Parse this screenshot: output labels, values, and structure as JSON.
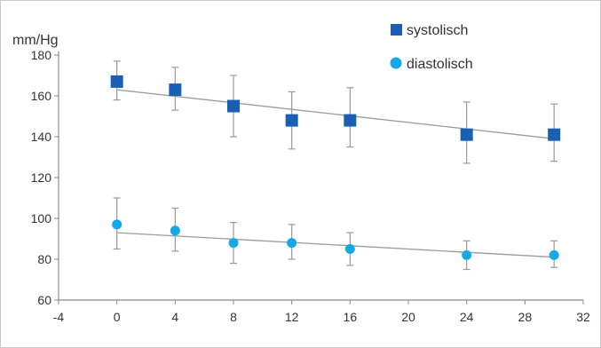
{
  "chart_data": {
    "type": "scatter",
    "title": "",
    "xlabel": "",
    "ylabel": "mm/Hg",
    "xlim": [
      -4,
      32
    ],
    "ylim": [
      60,
      180
    ],
    "x_ticks": [
      "-4",
      "0",
      "4",
      "8",
      "12",
      "16",
      "20",
      "24",
      "28",
      "32"
    ],
    "y_ticks": [
      "60",
      "80",
      "100",
      "120",
      "140",
      "160",
      "180"
    ],
    "grid": false,
    "legend_position": "top-right",
    "series": [
      {
        "name": "systolisch",
        "marker": "square",
        "color": "#1a5fb4",
        "x": [
          0,
          4,
          8,
          12,
          16,
          24,
          30
        ],
        "y": [
          167,
          163,
          155,
          148,
          148,
          141,
          141
        ],
        "error_low": [
          158,
          153,
          140,
          134,
          135,
          127,
          128
        ],
        "error_high": [
          177,
          174,
          170,
          162,
          164,
          157,
          156
        ],
        "trend": {
          "x": [
            0,
            30
          ],
          "y": [
            163,
            139
          ]
        }
      },
      {
        "name": "diastolisch",
        "marker": "circle",
        "color": "#14a8e6",
        "x": [
          0,
          4,
          8,
          12,
          16,
          24,
          30
        ],
        "y": [
          97,
          94,
          88,
          88,
          85,
          82,
          82
        ],
        "error_low": [
          85,
          84,
          78,
          80,
          77,
          75,
          76
        ],
        "error_high": [
          110,
          105,
          98,
          97,
          93,
          89,
          89
        ],
        "trend": {
          "x": [
            0,
            30
          ],
          "y": [
            93,
            81
          ]
        }
      }
    ]
  },
  "colors": {
    "axis": "#8a8a8a",
    "tick_text": "#333333",
    "error_bar": "#9a9a9a",
    "trend_line": "#9a9a9a"
  }
}
